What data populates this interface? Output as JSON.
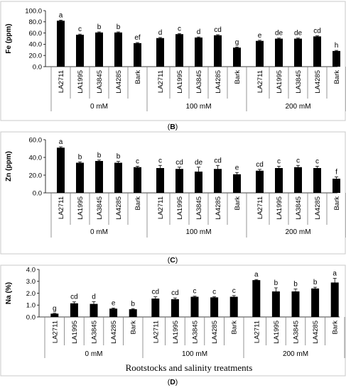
{
  "chart_data": [
    {
      "type": "bar",
      "panel_label": "(B)",
      "ylabel": "Fe (ppm)",
      "ylim": [
        0,
        100
      ],
      "yticks": [
        "0.0",
        "20.0",
        "40.0",
        "60.0",
        "80.0",
        "100.0"
      ],
      "groups": [
        "0 mM",
        "100 mM",
        "200 mM"
      ],
      "categories": [
        "LA2711",
        "LA1995",
        "LA3845",
        "LA4285",
        "Bark"
      ],
      "values": [
        [
          82,
          57,
          61,
          61,
          42
        ],
        [
          51,
          58,
          52,
          56,
          34
        ],
        [
          46,
          50,
          50,
          54,
          28
        ]
      ],
      "errors": [
        [
          1,
          1,
          1,
          1,
          1
        ],
        [
          1,
          1,
          1,
          1,
          1
        ],
        [
          1,
          1,
          1,
          1,
          1
        ]
      ],
      "letters": [
        [
          "a",
          "c",
          "b",
          "b",
          "ef"
        ],
        [
          "d",
          "c",
          "d",
          "cd",
          "g"
        ],
        [
          "e",
          "de",
          "de",
          "cd",
          "h"
        ]
      ]
    },
    {
      "type": "bar",
      "panel_label": "(C)",
      "ylabel": "Zn (ppm)",
      "ylim": [
        0,
        60
      ],
      "yticks": [
        "0.0",
        "20.0",
        "40.0",
        "60.0"
      ],
      "groups": [
        "0 mM",
        "100 mM",
        "200 mM"
      ],
      "categories": [
        "LA2711",
        "LA1995",
        "LA3845",
        "LA4285",
        "Bark"
      ],
      "values": [
        [
          51,
          34,
          36,
          34,
          29
        ],
        [
          28,
          27,
          24,
          27,
          21
        ],
        [
          25,
          28,
          29,
          28,
          16
        ]
      ],
      "errors": [
        [
          1,
          1,
          1,
          1.5,
          1
        ],
        [
          3,
          2,
          5,
          4,
          2
        ],
        [
          1.5,
          2,
          2,
          2,
          2
        ]
      ],
      "letters": [
        [
          "a",
          "b",
          "b",
          "b",
          "c"
        ],
        [
          "c",
          "cd",
          "de",
          "cd",
          "e"
        ],
        [
          "cd",
          "c",
          "c",
          "c",
          "f"
        ]
      ]
    },
    {
      "type": "bar",
      "panel_label": "(D)",
      "ylabel": "Na (%)",
      "xlabel": "Rootstocks and salinity treatments",
      "ylim": [
        0,
        4
      ],
      "yticks": [
        "0.0",
        "1.0",
        "2.0",
        "3.0",
        "4.0"
      ],
      "groups": [
        "0 mM",
        "100 mM",
        "200 mM"
      ],
      "categories": [
        "LA2711",
        "LA1995",
        "LA3845",
        "LA4285",
        "Bark"
      ],
      "values": [
        [
          0.28,
          1.15,
          1.1,
          0.7,
          0.65
        ],
        [
          1.55,
          1.5,
          1.7,
          1.65,
          1.7
        ],
        [
          3.1,
          2.15,
          2.15,
          2.4,
          2.9
        ]
      ],
      "errors": [
        [
          0.03,
          0.12,
          0.18,
          0.05,
          0.05
        ],
        [
          0.15,
          0.1,
          0.05,
          0.05,
          0.1
        ],
        [
          0.05,
          0.3,
          0.2,
          0.1,
          0.35
        ]
      ],
      "letters": [
        [
          "g",
          "cd",
          "d",
          "e",
          "b"
        ],
        [
          "cd",
          "cd",
          "c",
          "c",
          "c"
        ],
        [
          "a",
          "b",
          "b",
          "b",
          "a"
        ]
      ]
    }
  ]
}
